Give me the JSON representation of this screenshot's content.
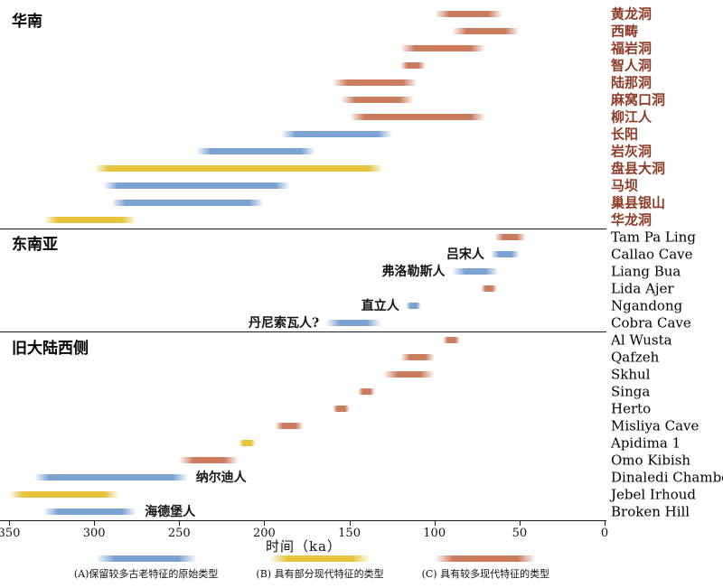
{
  "axis": {
    "label": "时间（ka）",
    "min": 0,
    "max": 350,
    "ticks": [
      350,
      300,
      250,
      200,
      150,
      100,
      50,
      0
    ]
  },
  "legend": [
    {
      "key": "A",
      "label": "(A)保留较多古老特征的原始类型",
      "color": "#7ba3d2"
    },
    {
      "key": "B",
      "label": "(B) 具有部分现代特征的类型",
      "color": "#e6c33c"
    },
    {
      "key": "C",
      "label": "(C) 具有较多现代特征的类型",
      "color": "#ca7c5f"
    }
  ],
  "chart_data": {
    "type": "bar",
    "orientation": "horizontal-range-timeline",
    "unit": "ka",
    "x_axis": {
      "label": "时间（ka）",
      "min": 0,
      "max": 350,
      "reversed": true,
      "ticks": [
        350,
        300,
        250,
        200,
        150,
        100,
        50,
        0
      ]
    },
    "sections": [
      {
        "name": "华南",
        "rows": [
          {
            "site": "黄龙洞",
            "type": "C",
            "start": 100,
            "end": 60
          },
          {
            "site": "西畴",
            "type": "C",
            "start": 90,
            "end": 50
          },
          {
            "site": "福岩洞",
            "type": "C",
            "start": 120,
            "end": 70
          },
          {
            "site": "智人洞",
            "type": "C",
            "start": 120,
            "end": 105
          },
          {
            "site": "陆那洞",
            "type": "C",
            "start": 160,
            "end": 110
          },
          {
            "site": "麻窝口洞",
            "type": "C",
            "start": 155,
            "end": 112
          },
          {
            "site": "柳江人",
            "type": "C",
            "start": 150,
            "end": 70
          },
          {
            "site": "长阳",
            "type": "A",
            "start": 190,
            "end": 125
          },
          {
            "site": "岩灰洞",
            "type": "A",
            "start": 240,
            "end": 170
          },
          {
            "site": "盘县大洞",
            "type": "B",
            "start": 300,
            "end": 130
          },
          {
            "site": "马坝",
            "type": "A",
            "start": 295,
            "end": 185
          },
          {
            "site": "巢县银山",
            "type": "A",
            "start": 290,
            "end": 200
          },
          {
            "site": "华龙洞",
            "type": "B",
            "start": 330,
            "end": 275
          }
        ]
      },
      {
        "name": "东南亚",
        "rows": [
          {
            "site": "Tam Pa Ling",
            "type": "C",
            "start": 65,
            "end": 46
          },
          {
            "site": "Callao Cave",
            "type": "A",
            "start": 67,
            "end": 50,
            "annotation": "吕宋人",
            "annotation_side": "left"
          },
          {
            "site": "Liang Bua",
            "type": "A",
            "start": 90,
            "end": 62,
            "annotation": "弗洛勒斯人",
            "annotation_side": "left"
          },
          {
            "site": "Lida Ajer",
            "type": "C",
            "start": 73,
            "end": 63
          },
          {
            "site": "Ngandong",
            "type": "A",
            "start": 117,
            "end": 108,
            "annotation": "直立人",
            "annotation_side": "left"
          },
          {
            "site": "Cobra Cave",
            "type": "A",
            "start": 164,
            "end": 131,
            "annotation": "丹尼索瓦人?",
            "annotation_side": "left"
          }
        ]
      },
      {
        "name": "旧大陆西侧",
        "rows": [
          {
            "site": "Al Wusta",
            "type": "C",
            "start": 95,
            "end": 85
          },
          {
            "site": "Qafzeh",
            "type": "C",
            "start": 120,
            "end": 100
          },
          {
            "site": "Skhul",
            "type": "C",
            "start": 130,
            "end": 100
          },
          {
            "site": "Singa",
            "type": "C",
            "start": 145,
            "end": 135
          },
          {
            "site": "Herto",
            "type": "C",
            "start": 160,
            "end": 150
          },
          {
            "site": "Misliya Cave",
            "type": "C",
            "start": 194,
            "end": 177
          },
          {
            "site": "Apidima 1",
            "type": "B",
            "start": 215,
            "end": 205
          },
          {
            "site": "Omo Kibish",
            "type": "C",
            "start": 250,
            "end": 215
          },
          {
            "site": "Dinaledi Chamber",
            "type": "A",
            "start": 335,
            "end": 245,
            "annotation": "纳尔迪人",
            "annotation_side": "right"
          },
          {
            "site": "Jebel Irhoud",
            "type": "B",
            "start": 350,
            "end": 285
          },
          {
            "site": "Broken Hill",
            "type": "A",
            "start": 330,
            "end": 275,
            "annotation": "海德堡人",
            "annotation_side": "right"
          }
        ]
      }
    ]
  }
}
